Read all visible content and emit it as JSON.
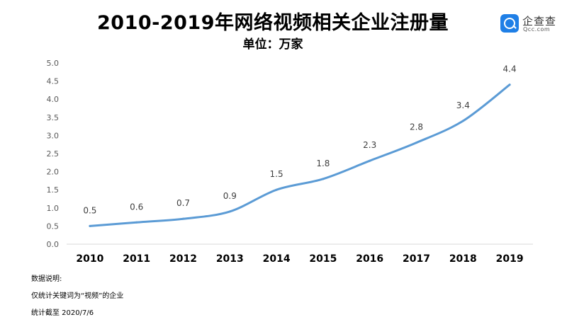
{
  "header": {
    "title": "2010-2019年网络视频相关企业注册量",
    "subtitle": "单位：万家"
  },
  "brand": {
    "name": "企查查",
    "sub": "Qcc.com",
    "icon": "qcc-logo-icon",
    "color": "#1f7fe6"
  },
  "notes": {
    "heading": "数据说明:",
    "line1": "仅统计关键词为“视频”的企业",
    "line2": "统计截至 2020/7/6"
  },
  "chart_data": {
    "type": "line",
    "title": "2010-2019年网络视频相关企业注册量",
    "subtitle": "单位：万家",
    "categories": [
      "2010",
      "2011",
      "2012",
      "2013",
      "2014",
      "2015",
      "2016",
      "2017",
      "2018",
      "2019"
    ],
    "values": [
      0.5,
      0.6,
      0.7,
      0.9,
      1.5,
      1.8,
      2.3,
      2.8,
      3.4,
      4.4
    ],
    "data_labels": [
      "0.5",
      "0.6",
      "0.7",
      "0.9",
      "1.5",
      "1.8",
      "2.3",
      "2.8",
      "3.4",
      "4.4"
    ],
    "y_ticks": [
      "0.0",
      "0.5",
      "1.0",
      "1.5",
      "2.0",
      "2.5",
      "3.0",
      "3.5",
      "4.0",
      "4.5",
      "5.0"
    ],
    "ylim": [
      0,
      5
    ],
    "grid": false,
    "legend": false,
    "line_color": "#5b9bd5",
    "axis_color": "#d9d9d9"
  }
}
